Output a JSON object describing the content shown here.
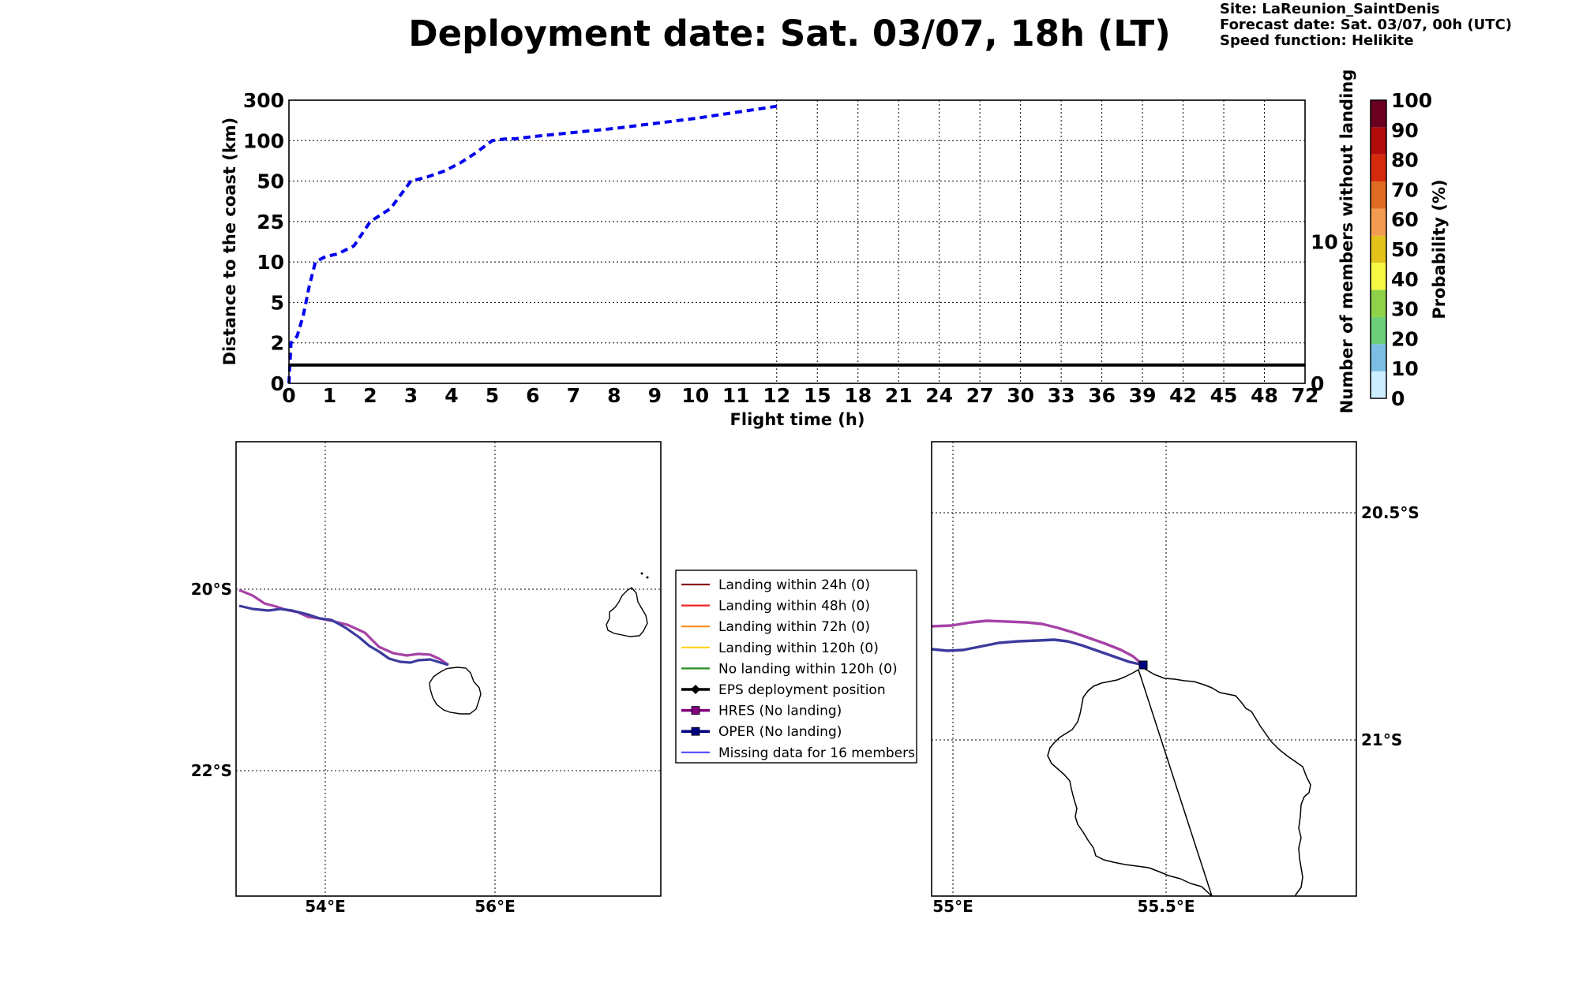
{
  "header": {
    "title": "Deployment date: Sat. 03/07, 18h (LT)",
    "site": "Site: LaReunion_SaintDenis",
    "forecast": "Forecast date: Sat. 03/07, 00h (UTC)",
    "speed": "Speed function: Helikite"
  },
  "chart_data": [
    {
      "type": "line",
      "xlabel": "Flight time (h)",
      "ylabel": "Distance to the coast (km)",
      "y2label": "Number of members without landing",
      "x_ticks": [
        "0",
        "1",
        "2",
        "3",
        "4",
        "5",
        "6",
        "7",
        "8",
        "9",
        "10",
        "11",
        "12",
        "15",
        "18",
        "21",
        "24",
        "27",
        "30",
        "33",
        "36",
        "39",
        "42",
        "45",
        "48",
        "72"
      ],
      "y_ticks": [
        "0",
        "2",
        "5",
        "10",
        "25",
        "50",
        "100",
        "300"
      ],
      "y2_ticks": [
        "0",
        "10"
      ],
      "y2lim": [
        0,
        20
      ],
      "grid": true,
      "series": [
        {
          "name": "HRES",
          "color": "#0000ee",
          "style": "dashed",
          "x": [
            0,
            0.05,
            0.2,
            0.35,
            0.5,
            0.65,
            0.9,
            1.2,
            1.6,
            2.0,
            2.5,
            3.0,
            3.4,
            3.8,
            4.2,
            4.6,
            5.0,
            5.3,
            5.6,
            6.0,
            7.0,
            8.0,
            9.0,
            10.0,
            11.0,
            12.0
          ],
          "y": [
            0,
            2,
            2.5,
            4,
            7,
            10,
            12,
            13,
            16,
            25,
            33,
            50,
            55,
            62,
            72,
            85,
            100,
            108,
            110,
            120,
            140,
            160,
            185,
            210,
            240,
            270
          ]
        },
        {
          "name": "Number of members without landing",
          "axis": "y2",
          "color": "#000000",
          "x": [
            0,
            72
          ],
          "y": [
            1.3,
            1.3
          ]
        }
      ]
    },
    {
      "type": "map",
      "lon_ticks": [
        "54°E",
        "56°E"
      ],
      "lat_ticks": [
        "20°S",
        "22°S"
      ]
    },
    {
      "type": "map",
      "lon_ticks": [
        "55°E",
        "55.5°E"
      ],
      "lat_ticks": [
        "20.5°S",
        "21°S"
      ]
    }
  ],
  "colorbar": {
    "label": "Probability (%)",
    "ticks": [
      "0",
      "10",
      "20",
      "30",
      "40",
      "50",
      "60",
      "70",
      "80",
      "90",
      "100"
    ],
    "colors": [
      "#cdeefd",
      "#7bbde3",
      "#6dcf7a",
      "#8fd24a",
      "#f7f745",
      "#e3c21b",
      "#f29b52",
      "#e06b22",
      "#d62a0d",
      "#b20b0b",
      "#6b0020"
    ]
  },
  "legend": [
    {
      "label": "Landing within 24h (0)",
      "color": "#8b1a1a",
      "marker": "none"
    },
    {
      "label": "Landing within 48h (0)",
      "color": "#ee2222",
      "marker": "none"
    },
    {
      "label": "Landing within 72h (0)",
      "color": "#ff8c1a",
      "marker": "none"
    },
    {
      "label": "Landing within 120h (0)",
      "color": "#ffd11a",
      "marker": "none"
    },
    {
      "label": "No landing within 120h (0)",
      "color": "#228b22",
      "marker": "none"
    },
    {
      "label": "EPS deployment position",
      "color": "#000000",
      "marker": "diamond"
    },
    {
      "label": "HRES (No landing)",
      "color": "#800080",
      "marker": "square"
    },
    {
      "label": "OPER (No landing)",
      "color": "#000080",
      "marker": "square"
    },
    {
      "label": "Missing data for 16 members",
      "color": "#4c4cff",
      "marker": "none"
    }
  ]
}
